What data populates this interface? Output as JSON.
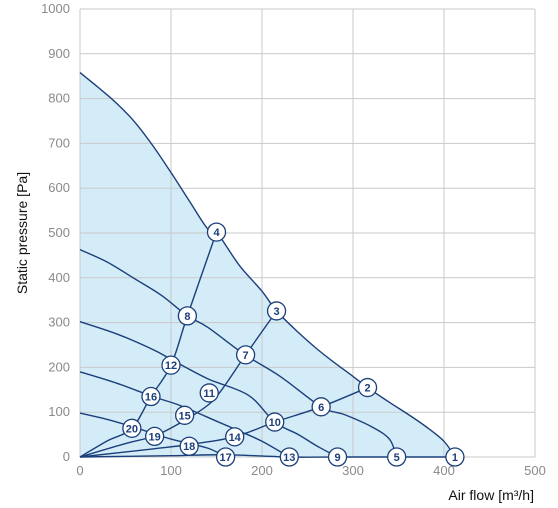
{
  "chart_data": {
    "type": "line",
    "title": "",
    "xlabel": "Air flow [m³/h]",
    "ylabel": "Static pressure [Pa]",
    "xlim": [
      0,
      500
    ],
    "ylim": [
      0,
      1000
    ],
    "x_ticks": [
      "0",
      "100",
      "200",
      "300",
      "400",
      "500"
    ],
    "y_ticks": [
      "0",
      "100",
      "200",
      "300",
      "400",
      "500",
      "600",
      "700",
      "800",
      "900",
      "1000"
    ],
    "grid": true,
    "fill_color": "#d4ecf8",
    "line_color": "#1b3f7a",
    "series": [
      {
        "points": [
          [
            0,
            858
          ],
          [
            20,
            825
          ],
          [
            40,
            790
          ],
          [
            60,
            748
          ],
          [
            80,
            695
          ],
          [
            100,
            635
          ],
          [
            120,
            572
          ],
          [
            140,
            510
          ],
          [
            150,
            502
          ],
          [
            175,
            428
          ],
          [
            200,
            370
          ],
          [
            216,
            326
          ],
          [
            240,
            278
          ],
          [
            260,
            242
          ],
          [
            280,
            210
          ],
          [
            300,
            180
          ],
          [
            316,
            155
          ],
          [
            340,
            122
          ],
          [
            360,
            96
          ],
          [
            380,
            68
          ],
          [
            400,
            35
          ],
          [
            412,
            0
          ]
        ]
      },
      {
        "points": [
          [
            0,
            463
          ],
          [
            30,
            435
          ],
          [
            60,
            398
          ],
          [
            90,
            360
          ],
          [
            118,
            315
          ],
          [
            140,
            290
          ],
          [
            180,
            230
          ],
          [
            220,
            180
          ],
          [
            265,
            112
          ],
          [
            290,
            95
          ],
          [
            320,
            68
          ],
          [
            340,
            40
          ],
          [
            348,
            0
          ]
        ]
      },
      {
        "points": [
          [
            0,
            302
          ],
          [
            40,
            275
          ],
          [
            80,
            240
          ],
          [
            100,
            218
          ],
          [
            140,
            175
          ],
          [
            185,
            138
          ],
          [
            214,
            78
          ],
          [
            240,
            50
          ],
          [
            260,
            25
          ],
          [
            283,
            0
          ]
        ]
      },
      {
        "points": [
          [
            0,
            190
          ],
          [
            40,
            165
          ],
          [
            80,
            135
          ],
          [
            110,
            115
          ],
          [
            150,
            80
          ],
          [
            175,
            58
          ],
          [
            200,
            35
          ],
          [
            230,
            0
          ]
        ]
      },
      {
        "points": [
          [
            0,
            98
          ],
          [
            30,
            84
          ],
          [
            60,
            66
          ],
          [
            100,
            40
          ],
          [
            140,
            20
          ],
          [
            160,
            0
          ]
        ]
      },
      {
        "points": [
          [
            0,
            0
          ],
          [
            30,
            36
          ],
          [
            57,
            64
          ],
          [
            78,
            135
          ],
          [
            100,
            205
          ],
          [
            118,
            315
          ],
          [
            150,
            502
          ]
        ]
      },
      {
        "points": [
          [
            0,
            0
          ],
          [
            50,
            30
          ],
          [
            83,
            48
          ],
          [
            115,
            82
          ],
          [
            140,
            115
          ],
          [
            155,
            148
          ],
          [
            182,
            228
          ],
          [
            216,
            326
          ]
        ]
      },
      {
        "points": [
          [
            0,
            0
          ],
          [
            80,
            18
          ],
          [
            120,
            28
          ],
          [
            170,
            45
          ],
          [
            214,
            78
          ],
          [
            265,
            112
          ],
          [
            316,
            155
          ]
        ]
      },
      {
        "points": [
          [
            0,
            0
          ],
          [
            100,
            3
          ],
          [
            160,
            5
          ],
          [
            230,
            0
          ],
          [
            290,
            0
          ],
          [
            348,
            0
          ],
          [
            412,
            0
          ]
        ]
      }
    ],
    "markers": [
      {
        "label": "1",
        "x": 412,
        "y": 0
      },
      {
        "label": "2",
        "x": 316,
        "y": 155
      },
      {
        "label": "3",
        "x": 216,
        "y": 326
      },
      {
        "label": "4",
        "x": 150,
        "y": 502
      },
      {
        "label": "5",
        "x": 348,
        "y": 0
      },
      {
        "label": "6",
        "x": 265,
        "y": 112
      },
      {
        "label": "7",
        "x": 182,
        "y": 228
      },
      {
        "label": "8",
        "x": 118,
        "y": 315
      },
      {
        "label": "9",
        "x": 283,
        "y": 0
      },
      {
        "label": "10",
        "x": 214,
        "y": 78
      },
      {
        "label": "11",
        "x": 142,
        "y": 143
      },
      {
        "label": "12",
        "x": 100,
        "y": 205
      },
      {
        "label": "13",
        "x": 230,
        "y": 0
      },
      {
        "label": "14",
        "x": 170,
        "y": 45
      },
      {
        "label": "15",
        "x": 115,
        "y": 93
      },
      {
        "label": "16",
        "x": 78,
        "y": 135
      },
      {
        "label": "17",
        "x": 160,
        "y": 0
      },
      {
        "label": "18",
        "x": 120,
        "y": 24
      },
      {
        "label": "19",
        "x": 82,
        "y": 46
      },
      {
        "label": "20",
        "x": 57,
        "y": 64
      }
    ]
  }
}
